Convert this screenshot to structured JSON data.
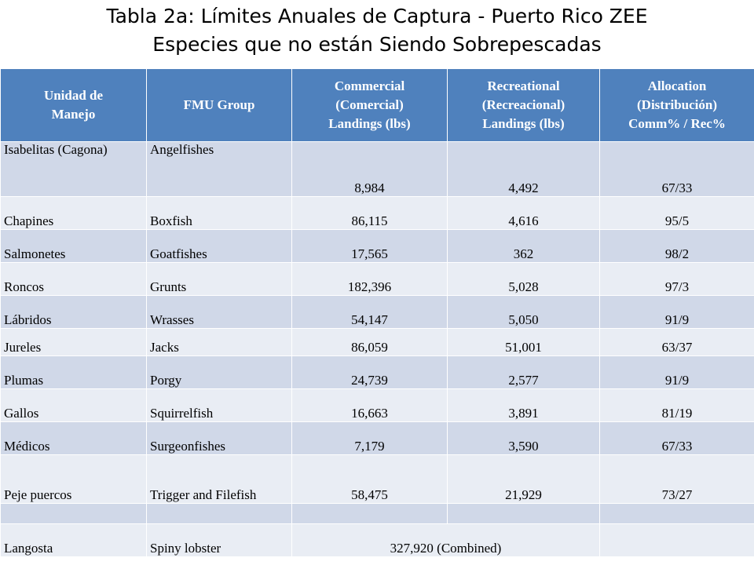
{
  "title": {
    "line1": "Tabla 2a:  Límites Anuales de Captura - Puerto Rico ZEE",
    "line2": "Especies que no están Siendo Sobrepescadas"
  },
  "headers": [
    [
      "Unidad de",
      "Manejo"
    ],
    [
      "FMU Group"
    ],
    [
      "Commercial",
      "(Comercial)",
      "Landings (lbs)"
    ],
    [
      "Recreational",
      "(Recreacional)",
      "Landings (lbs)"
    ],
    [
      "Allocation",
      "(Distribución)",
      "Comm% / Rec%"
    ]
  ],
  "rows": [
    {
      "unit": "Isabelitas (Cagona)",
      "fmu": "Angelfishes",
      "comm": "8,984",
      "rec": "4,492",
      "alloc": "67/33"
    },
    {
      "unit": "Chapines",
      "fmu": "Boxfish",
      "comm": "86,115",
      "rec": "4,616",
      "alloc": "95/5"
    },
    {
      "unit": "Salmonetes",
      "fmu": "Goatfishes",
      "comm": "17,565",
      "rec": "362",
      "alloc": "98/2"
    },
    {
      "unit": "Roncos",
      "fmu": "Grunts",
      "comm": "182,396",
      "rec": "5,028",
      "alloc": "97/3"
    },
    {
      "unit": "Lábridos",
      "fmu": "Wrasses",
      "comm": "54,147",
      "rec": "5,050",
      "alloc": "91/9"
    },
    {
      "unit": "Jureles",
      "fmu": "Jacks",
      "comm": "86,059",
      "rec": "51,001",
      "alloc": "63/37"
    },
    {
      "unit": "Plumas",
      "fmu": "Porgy",
      "comm": "24,739",
      "rec": "2,577",
      "alloc": "91/9"
    },
    {
      "unit": "Gallos",
      "fmu": "Squirrelfish",
      "comm": "16,663",
      "rec": "3,891",
      "alloc": "81/19"
    },
    {
      "unit": "Médicos",
      "fmu": "Surgeonfishes",
      "comm": "7,179",
      "rec": "3,590",
      "alloc": "67/33"
    },
    {
      "unit": "Peje puercos",
      "fmu": "Trigger and Filefish",
      "comm": "58,475",
      "rec": "21,929",
      "alloc": "73/27"
    }
  ],
  "lobster": {
    "unit": "Langosta",
    "fmu": "Spiny lobster",
    "combined": "327,920 (Combined)"
  }
}
